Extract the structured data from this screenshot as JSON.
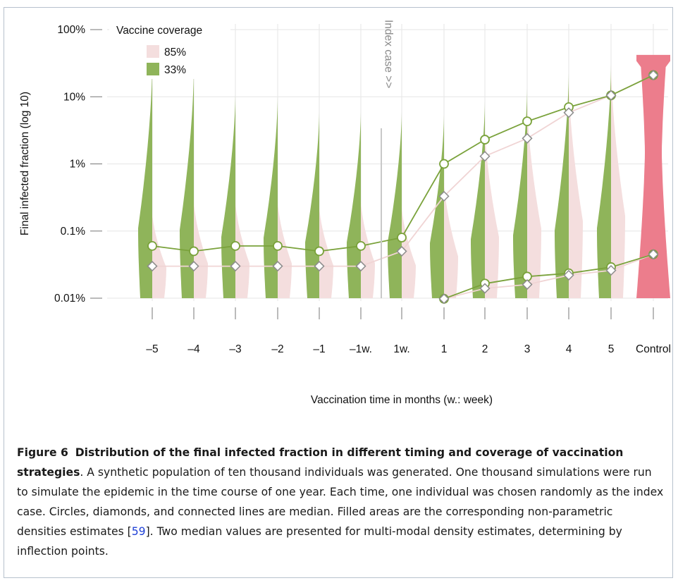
{
  "chart_data": {
    "type": "violin",
    "ylabel": "Final infected fraction (log 10)",
    "xlabel": "Vaccination time in months (w.: week)",
    "yscale": "log10",
    "ylim": [
      0.01,
      100
    ],
    "yticks": [
      {
        "value": 0.01,
        "label": "0.01%"
      },
      {
        "value": 0.1,
        "label": "0.1%"
      },
      {
        "value": 1,
        "label": "1%"
      },
      {
        "value": 10,
        "label": "10%"
      },
      {
        "value": 100,
        "label": "100%"
      }
    ],
    "categories": [
      "–5",
      "–4",
      "–3",
      "–2",
      "–1",
      "–1w.",
      "1w.",
      "1",
      "2",
      "3",
      "4",
      "5",
      "Control"
    ],
    "legend": {
      "title": "Vaccine coverage",
      "position": "top-left",
      "entries": [
        {
          "label": "85%",
          "color": "#f4dede"
        },
        {
          "label": "33%",
          "color": "#8fb45a"
        }
      ]
    },
    "annotation": {
      "text": "Index case >>",
      "between": [
        "–1w.",
        "1w."
      ]
    },
    "violin_max": {
      "coverage_33": [
        30,
        25,
        11,
        10,
        6,
        6,
        6,
        5.5,
        8.5,
        13.5,
        23,
        30,
        null
      ],
      "coverage_85": [
        0.2,
        0.3,
        0.3,
        0.3,
        0.25,
        0.3,
        0.25,
        0.6,
        4,
        9,
        19,
        32,
        null
      ],
      "control": 42
    },
    "series": [
      {
        "name": "33%",
        "marker": "circle",
        "color": "#7aa23b",
        "upper_median": [
          0.06,
          0.05,
          0.06,
          0.06,
          0.05,
          0.06,
          0.08,
          1.0,
          2.3,
          4.3,
          7.0,
          10.5,
          21
        ],
        "lower_median": [
          null,
          null,
          null,
          null,
          null,
          null,
          null,
          0.0098,
          0.0165,
          0.021,
          0.0235,
          0.029,
          0.045
        ]
      },
      {
        "name": "85%",
        "marker": "diamond",
        "color": "#f0d4d4",
        "upper_median": [
          0.03,
          0.03,
          0.03,
          0.03,
          0.03,
          0.03,
          0.05,
          0.33,
          1.3,
          2.4,
          5.8,
          10.5,
          21
        ],
        "lower_median": [
          null,
          null,
          null,
          null,
          null,
          null,
          null,
          0.0098,
          0.014,
          0.016,
          0.022,
          0.026,
          0.045
        ]
      }
    ],
    "colors": {
      "coverage_33": "#8fb45a",
      "coverage_85": "#f4dede",
      "control": "#ec7d8c"
    }
  },
  "caption": {
    "label": "Figure 6",
    "title": "Distribution of the final infected fraction in different timing and coverage of vaccination strategies",
    "text": ". A synthetic population of ten thousand individuals was generated. One thousand simulations were run to simulate the epidemic in the time course of one year. Each time, one individual was chosen randomly as the index case. Circles, diamonds, and connected lines are median. Filled areas are the corresponding non-parametric densities estimates [",
    "ref": "59",
    "text_end": "]. Two median values are presented for multi-modal density estimates, determining by inflection points."
  }
}
